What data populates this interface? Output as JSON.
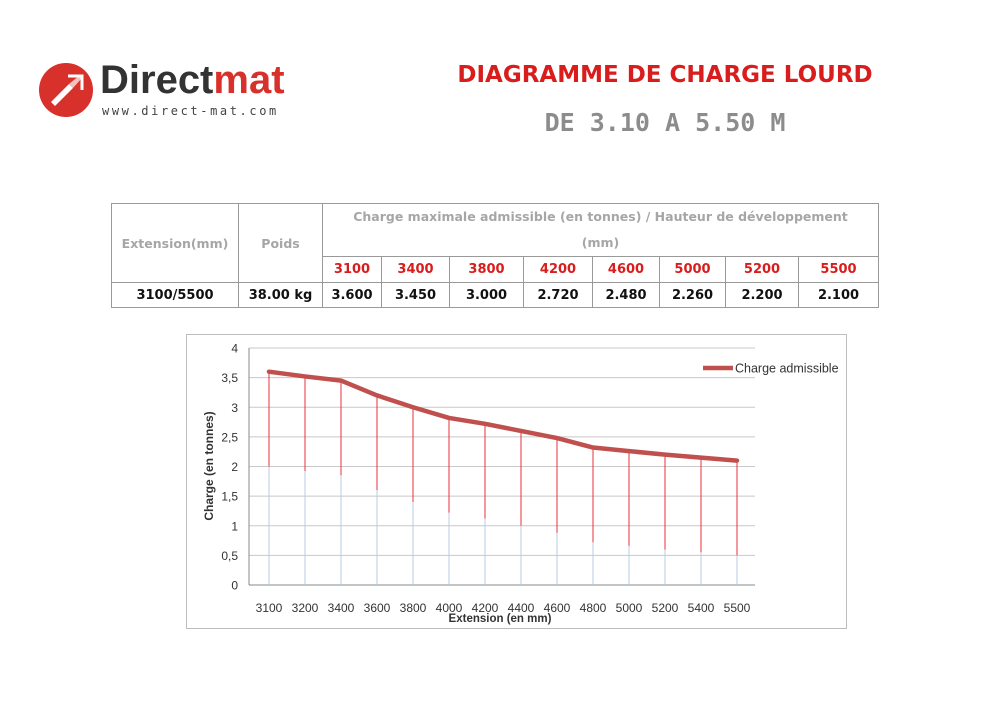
{
  "header": {
    "logo_name": "Direct",
    "logo_name_accent": "mat",
    "logo_url": "www.direct-mat.com",
    "title": "DIAGRAMME DE CHARGE LOURD",
    "subtitle": "DE 3.10 A 5.50 M"
  },
  "table": {
    "col_extension": "Extension(mm)",
    "col_weight": "Poids",
    "col_charge_header": "Charge maximale admissible (en tonnes) / Hauteur de développement (mm)",
    "heights": [
      "3100",
      "3400",
      "3800",
      "4200",
      "4600",
      "5000",
      "5200",
      "5500"
    ],
    "row": {
      "extension": "3100/5500",
      "weight": "38.00 kg",
      "values": [
        "3.600",
        "3.450",
        "3.000",
        "2.720",
        "2.480",
        "2.260",
        "2.200",
        "2.100"
      ]
    }
  },
  "chart_data": {
    "type": "line",
    "title": "",
    "xlabel": "Extension (en mm)",
    "ylabel": "Charge (en tonnes)",
    "x": [
      3100,
      3200,
      3400,
      3600,
      3800,
      4000,
      4200,
      4400,
      4600,
      4800,
      5000,
      5200,
      5400,
      5500
    ],
    "x_tick_labels": [
      "3100",
      "3200",
      "3400",
      "3600",
      "3800",
      "4000",
      "4200",
      "4400",
      "4600",
      "4800",
      "5000",
      "5200",
      "5400",
      "5500"
    ],
    "y_ticks": [
      "0",
      "0,5",
      "1",
      "1,5",
      "2",
      "2,5",
      "3",
      "3,5",
      "4"
    ],
    "ylim": [
      0,
      4
    ],
    "grid": true,
    "legend_position": "top-right",
    "series": [
      {
        "name": "Charge admissible",
        "values": [
          3.6,
          3.52,
          3.45,
          3.2,
          3.0,
          2.82,
          2.72,
          2.6,
          2.48,
          2.32,
          2.26,
          2.2,
          2.15,
          2.1
        ],
        "color": "#c0504d"
      }
    ],
    "drop_line_color": "#e8303a"
  }
}
